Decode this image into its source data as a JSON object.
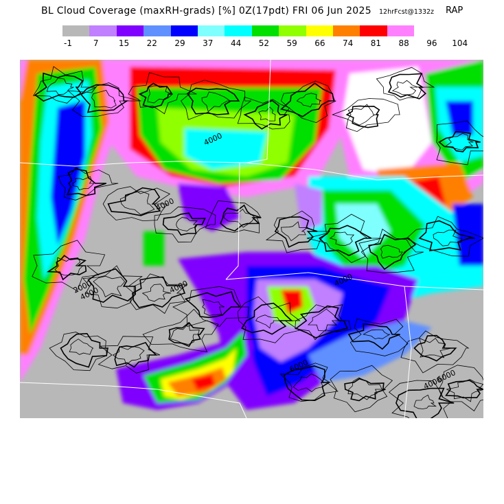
{
  "header": {
    "title": "BL Cloud Coverage (maxRH-grads) [%] 0Z(17pdt) FRI 06 Jun 2025",
    "forecast": "12hrFcst@1332z",
    "model": "RAP"
  },
  "legend": {
    "colors": [
      "#b8b8b8",
      "#c080ff",
      "#8000ff",
      "#6090ff",
      "#0000ff",
      "#80ffff",
      "#00ffff",
      "#00e000",
      "#90ff00",
      "#ffff00",
      "#ff8000",
      "#ff0000",
      "#ff80ff"
    ],
    "ticks": [
      "-1",
      "7",
      "15",
      "22",
      "29",
      "37",
      "44",
      "52",
      "59",
      "66",
      "74",
      "81",
      "88",
      "96",
      "104"
    ]
  },
  "map": {
    "contour_labels": [
      "4000",
      "4000",
      "4000",
      "4000",
      "4000",
      "4000",
      "6000",
      "6000",
      "2000"
    ]
  }
}
